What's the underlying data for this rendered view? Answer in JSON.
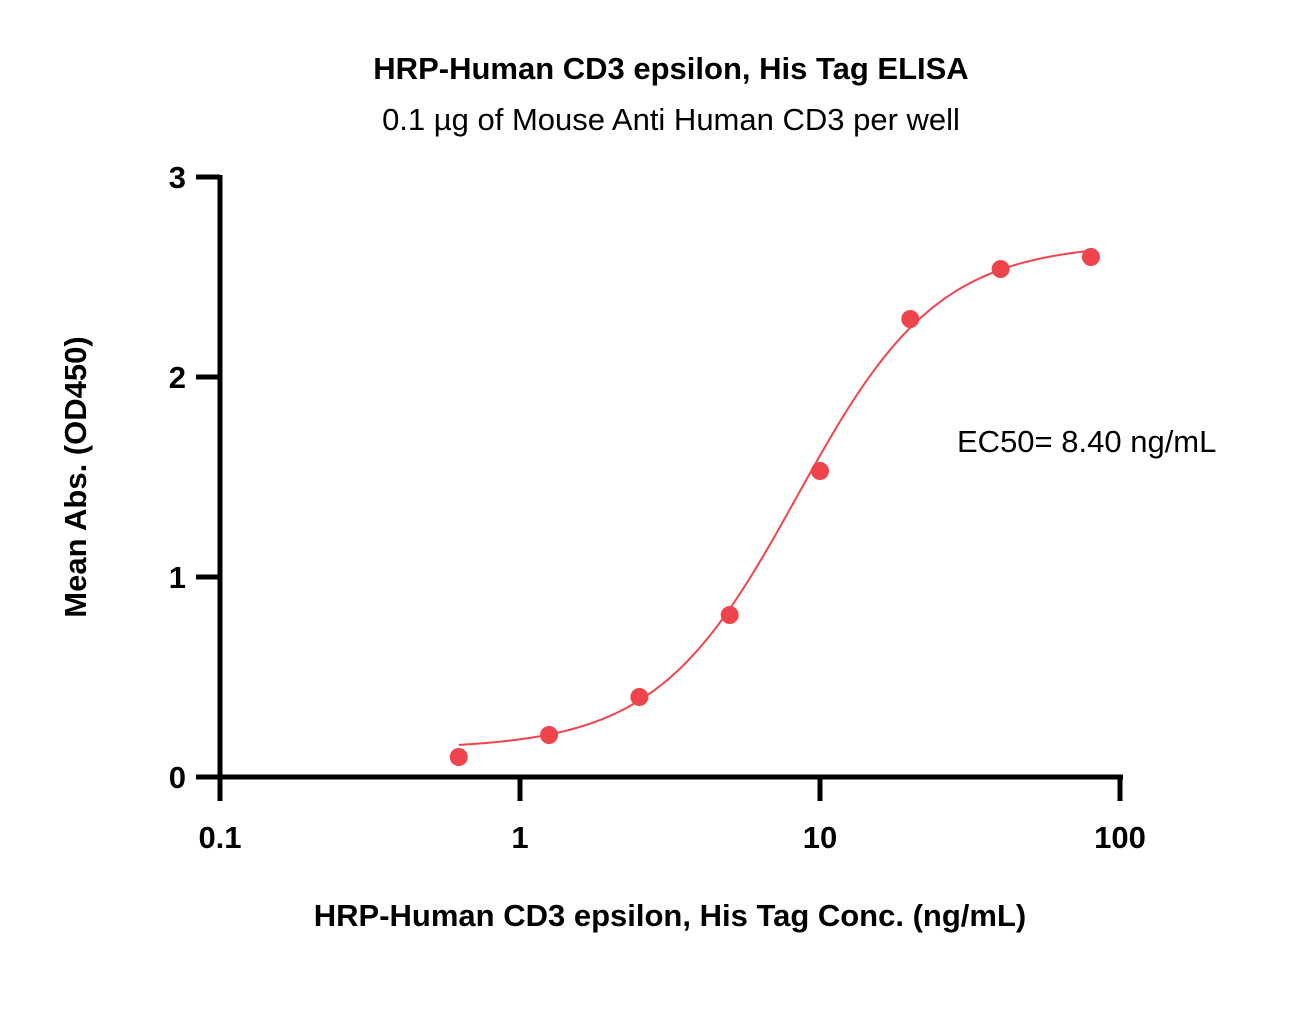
{
  "chart_data": {
    "type": "scatter",
    "title": "HRP-Human CD3 epsilon, His Tag ELISA",
    "subtitle": "0.1 µg of Mouse Anti Human CD3 per well",
    "xlabel": "HRP-Human CD3 epsilon, His Tag Conc. (ng/mL)",
    "ylabel": "Mean Abs. (OD450)",
    "x_scale": "log",
    "xlim": [
      0.1,
      100
    ],
    "ylim": [
      0,
      3
    ],
    "x_ticks": [
      "0.1",
      "1",
      "10",
      "100"
    ],
    "y_ticks": [
      "0",
      "1",
      "2",
      "3"
    ],
    "grid": false,
    "legend": "none",
    "series": [
      {
        "x": [
          0.625,
          1.25,
          2.5,
          5,
          10,
          20,
          40,
          80
        ],
        "y": [
          0.1,
          0.21,
          0.4,
          0.81,
          1.53,
          2.29,
          2.54,
          2.6
        ],
        "color": "#f0444c"
      }
    ],
    "fit": {
      "model": "4PL",
      "bottom": 0.14,
      "top": 2.67,
      "ec50": 8.4,
      "hill": 1.85,
      "color": "#f0444c"
    },
    "annotations": [
      {
        "text": "EC50= 8.40 ng/mL"
      }
    ]
  }
}
